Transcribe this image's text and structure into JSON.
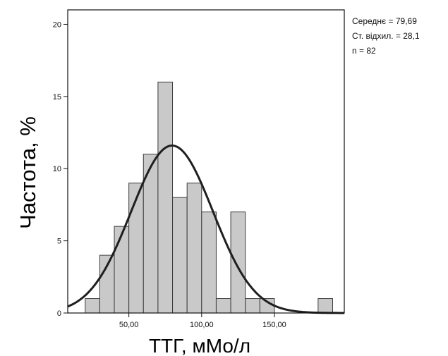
{
  "chart_data": {
    "type": "bar",
    "subtype": "histogram",
    "xlabel": "ТТГ, мМо/л",
    "ylabel": "Частота, %",
    "xlim": [
      8,
      198
    ],
    "ylim": [
      0,
      21
    ],
    "x_ticks": [
      50,
      100,
      150
    ],
    "x_tick_labels": [
      "50,00",
      "100,00",
      "150,00"
    ],
    "y_ticks": [
      0,
      5,
      10,
      15,
      20
    ],
    "y_tick_labels": [
      "0",
      "5",
      "10",
      "15",
      "20"
    ],
    "bin_width": 10,
    "bins": [
      {
        "start": 20,
        "end": 30,
        "value": 1
      },
      {
        "start": 30,
        "end": 40,
        "value": 4
      },
      {
        "start": 40,
        "end": 50,
        "value": 6
      },
      {
        "start": 50,
        "end": 60,
        "value": 9
      },
      {
        "start": 60,
        "end": 70,
        "value": 11
      },
      {
        "start": 70,
        "end": 80,
        "value": 16
      },
      {
        "start": 80,
        "end": 90,
        "value": 8
      },
      {
        "start": 90,
        "end": 100,
        "value": 9
      },
      {
        "start": 100,
        "end": 110,
        "value": 7
      },
      {
        "start": 110,
        "end": 120,
        "value": 1
      },
      {
        "start": 120,
        "end": 130,
        "value": 7
      },
      {
        "start": 130,
        "end": 140,
        "value": 1
      },
      {
        "start": 140,
        "end": 150,
        "value": 1
      },
      {
        "start": 180,
        "end": 190,
        "value": 1
      }
    ],
    "normal_curve": {
      "mean": 79.69,
      "sd": 28.1,
      "peak": 11.6
    },
    "grid": false,
    "legend": "none",
    "stats_box": {
      "mean_label": "Середнє = 79,69",
      "sd_label": "Ст. відхил. = 28,1",
      "n_label": "n = 82"
    },
    "colors": {
      "bar_fill": "#c9c9c9",
      "bar_stroke": "#3c3c3c",
      "curve": "#1f1f1f",
      "frame": "#111111",
      "background": "#ffffff"
    }
  }
}
